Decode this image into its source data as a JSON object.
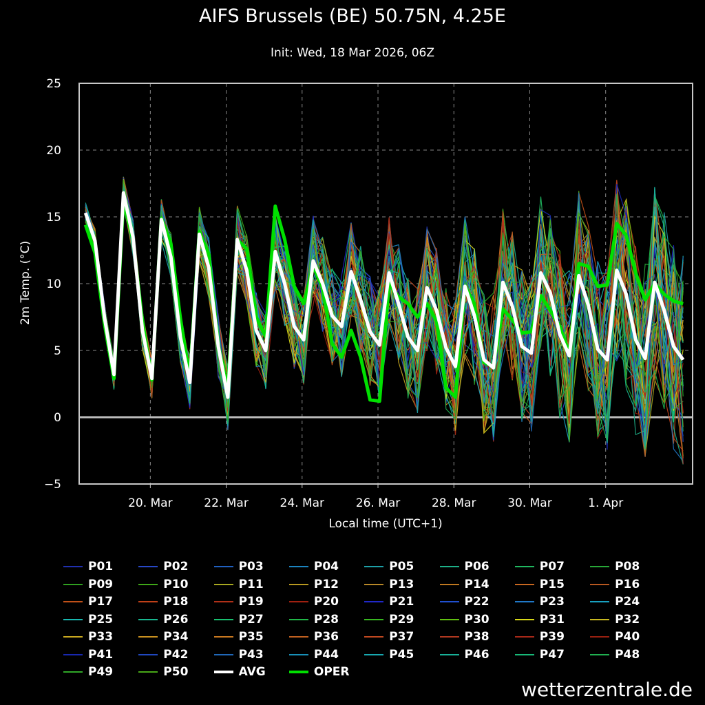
{
  "title": "AIFS Brussels (BE) 50.75N, 4.25E",
  "subtitle": "Init: Wed, 18 Mar 2026, 06Z",
  "watermark": "wetterzentrale.de",
  "chart_data": {
    "type": "line",
    "xlabel": "Local time (UTC+1)",
    "ylabel": "2m Temp. (°C)",
    "x_start": "2026-03-18 07:00",
    "x_step_hours": 6,
    "xlim": [
      "2026-03-18 03:00",
      "2026-04-03 07:00"
    ],
    "ylim": [
      -5,
      25
    ],
    "yticks": [
      -5,
      0,
      5,
      10,
      15,
      20,
      25
    ],
    "xticks": [
      {
        "label": "20. Mar",
        "time": "2026-03-20 00:00"
      },
      {
        "label": "22. Mar",
        "time": "2026-03-22 00:00"
      },
      {
        "label": "24. Mar",
        "time": "2026-03-24 00:00"
      },
      {
        "label": "26. Mar",
        "time": "2026-03-26 00:00"
      },
      {
        "label": "28. Mar",
        "time": "2026-03-28 00:00"
      },
      {
        "label": "30. Mar",
        "time": "2026-03-30 00:00"
      },
      {
        "label": "1. Apr",
        "time": "2026-04-01 00:00"
      }
    ],
    "grid": true,
    "zero_line": true,
    "legend_position": "bottom",
    "series_highlight": [
      {
        "name": "AVG",
        "color": "#ffffff",
        "values": [
          15.3,
          13.2,
          7.5,
          3.2,
          16.8,
          13.5,
          6.5,
          2.9,
          14.8,
          12.0,
          6.0,
          2.6,
          13.7,
          11.2,
          5.3,
          1.5,
          13.3,
          11.0,
          6.5,
          5.0,
          12.4,
          10.0,
          6.8,
          5.8,
          11.7,
          10.0,
          7.6,
          6.8,
          10.9,
          8.8,
          6.4,
          5.4,
          10.8,
          8.5,
          6.0,
          5.0,
          9.7,
          8.0,
          5.2,
          3.8,
          9.8,
          7.6,
          4.3,
          3.7,
          10.1,
          8.3,
          5.3,
          4.8,
          10.8,
          9.3,
          6.2,
          4.6,
          10.6,
          8.4,
          5.1,
          4.3,
          11.0,
          9.2,
          5.8,
          4.4,
          10.1,
          8.0,
          5.3,
          4.3
        ]
      },
      {
        "name": "OPER",
        "color": "#00e000",
        "values": [
          14.4,
          12.3,
          7.0,
          2.9,
          16.2,
          13.3,
          7.2,
          2.8,
          14.9,
          13.0,
          7.4,
          3.0,
          13.9,
          12.2,
          5.4,
          2.2,
          13.3,
          12.6,
          7.5,
          6.0,
          15.8,
          13.3,
          9.8,
          8.5,
          11.3,
          9.7,
          5.5,
          4.5,
          6.5,
          4.5,
          1.3,
          1.2,
          10.0,
          9.0,
          8.5,
          7.5,
          8.5,
          7.2,
          2.2,
          1.5,
          9.8,
          8.5,
          4.1,
          3.8,
          8.1,
          7.3,
          6.3,
          6.4,
          9.1,
          8.0,
          6.8,
          4.8,
          11.5,
          11.3,
          9.8,
          9.9,
          14.5,
          13.6,
          10.8,
          8.8,
          10.0,
          9.2,
          8.7,
          8.5
        ]
      }
    ],
    "members": [
      {
        "name": "P01",
        "color": "#2030b0"
      },
      {
        "name": "P02",
        "color": "#2848c8"
      },
      {
        "name": "P03",
        "color": "#2060c0"
      },
      {
        "name": "P04",
        "color": "#1c84c0"
      },
      {
        "name": "P05",
        "color": "#1ea0a8"
      },
      {
        "name": "P06",
        "color": "#1eb088"
      },
      {
        "name": "P07",
        "color": "#20b860"
      },
      {
        "name": "P08",
        "color": "#28a838"
      },
      {
        "name": "P09",
        "color": "#30a020"
      },
      {
        "name": "P10",
        "color": "#40a818"
      },
      {
        "name": "P11",
        "color": "#a8a820"
      },
      {
        "name": "P12",
        "color": "#b89820"
      },
      {
        "name": "P13",
        "color": "#b88828"
      },
      {
        "name": "P14",
        "color": "#c07820"
      },
      {
        "name": "P15",
        "color": "#c86820"
      },
      {
        "name": "P16",
        "color": "#b85820"
      },
      {
        "name": "P17",
        "color": "#c05018"
      },
      {
        "name": "P18",
        "color": "#c04018"
      },
      {
        "name": "P19",
        "color": "#b03018"
      },
      {
        "name": "P20",
        "color": "#a02010"
      },
      {
        "name": "P21",
        "color": "#2028c8"
      },
      {
        "name": "P22",
        "color": "#2050d0"
      },
      {
        "name": "P23",
        "color": "#2078c8"
      },
      {
        "name": "P24",
        "color": "#18a0c0"
      },
      {
        "name": "P25",
        "color": "#18b8b0"
      },
      {
        "name": "P26",
        "color": "#18b890"
      },
      {
        "name": "P27",
        "color": "#18c070"
      },
      {
        "name": "P28",
        "color": "#20b848"
      },
      {
        "name": "P29",
        "color": "#38b820"
      },
      {
        "name": "P30",
        "color": "#60c010"
      },
      {
        "name": "P31",
        "color": "#d8d818"
      },
      {
        "name": "P32",
        "color": "#c8b820"
      },
      {
        "name": "P33",
        "color": "#c8a820"
      },
      {
        "name": "P34",
        "color": "#c89020"
      },
      {
        "name": "P35",
        "color": "#c87820"
      },
      {
        "name": "P36",
        "color": "#c06020"
      },
      {
        "name": "P37",
        "color": "#c04820"
      },
      {
        "name": "P38",
        "color": "#b03820"
      },
      {
        "name": "P39",
        "color": "#a82818"
      },
      {
        "name": "P40",
        "color": "#982010"
      },
      {
        "name": "P41",
        "color": "#1828b0"
      },
      {
        "name": "P42",
        "color": "#2048c0"
      },
      {
        "name": "P43",
        "color": "#2068b8"
      },
      {
        "name": "P44",
        "color": "#1890b8"
      },
      {
        "name": "P45",
        "color": "#18a8b0"
      },
      {
        "name": "P46",
        "color": "#18b098"
      },
      {
        "name": "P47",
        "color": "#18b878"
      },
      {
        "name": "P48",
        "color": "#20b050"
      },
      {
        "name": "P49",
        "color": "#30a828"
      },
      {
        "name": "P50",
        "color": "#48a818"
      }
    ]
  },
  "colors": {
    "background": "#000000",
    "frame": "#c8c8c8",
    "grid": "#888888"
  }
}
